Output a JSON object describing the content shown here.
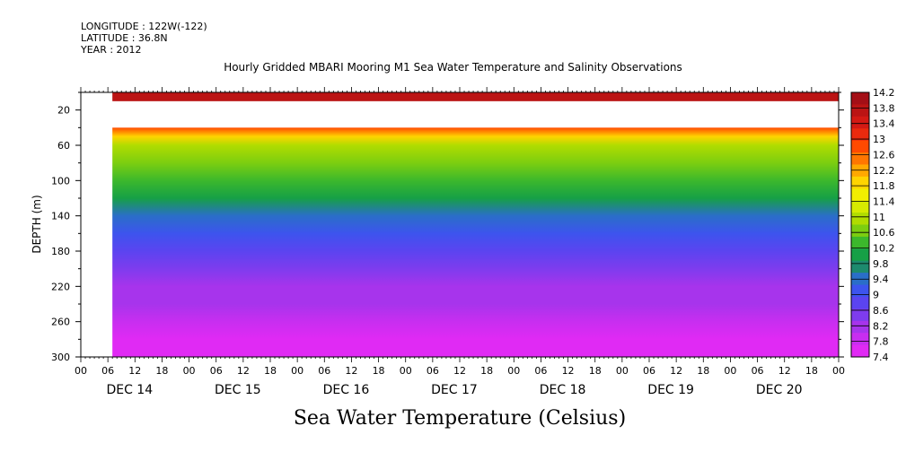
{
  "header": {
    "longitude": "LONGITUDE : 122W(-122)",
    "latitude": "LATITUDE : 36.8N",
    "year": "YEAR : 2012"
  },
  "footer_title": "Sea Water Temperature (Celsius)",
  "chart_data": {
    "type": "heatmap",
    "title": "Hourly Gridded MBARI Mooring M1 Sea Water Temperature and Salinity Observations",
    "xlabel": "",
    "ylabel": "DEPTH (m)",
    "ylim": [
      300,
      0
    ],
    "yticks": [
      20,
      60,
      100,
      140,
      180,
      220,
      260,
      300
    ],
    "x_range_hours": [
      0,
      168
    ],
    "x_hour_ticks": [
      "00",
      "06",
      "12",
      "18",
      "00",
      "06",
      "12",
      "18",
      "00",
      "06",
      "12",
      "18",
      "00",
      "06",
      "12",
      "18",
      "00",
      "06",
      "12",
      "18",
      "00",
      "06",
      "12",
      "18",
      "00",
      "06",
      "12",
      "18",
      "00"
    ],
    "x_day_labels": [
      "DEC 14",
      "DEC 15",
      "DEC 16",
      "DEC 17",
      "DEC 18",
      "DEC 19",
      "DEC 20"
    ],
    "data_start_hour": 7,
    "colorbar": {
      "levels": [
        14.2,
        13.8,
        13.4,
        13,
        12.6,
        12.2,
        11.8,
        11.4,
        11,
        10.6,
        10.2,
        9.8,
        9.4,
        9,
        8.6,
        8.2,
        7.8,
        7.4
      ],
      "colors": [
        "#a40f16",
        "#bb1414",
        "#d31a14",
        "#ea2a0e",
        "#ff4a00",
        "#ff7600",
        "#ffa800",
        "#ffd400",
        "#f2ee00",
        "#d6ea00",
        "#b0dc00",
        "#7cce10",
        "#3cb82c",
        "#16a046",
        "#1d8a6e",
        "#2a6ec8",
        "#3d54ee",
        "#5b44f0",
        "#7e3cee",
        "#a734ec",
        "#c82ef0",
        "#e02af4"
      ],
      "color_ramp_top_to_bottom": [
        "#a40f16",
        "#bb1414",
        "#d31a14",
        "#ea2a0e",
        "#ff4a00",
        "#ff7600",
        "#ffa800",
        "#ffd400",
        "#f2ee00",
        "#d6ea00",
        "#b0dc00",
        "#7cce10",
        "#3cb82c",
        "#16a046",
        "#1d8a6e",
        "#2a6ec8",
        "#3d54ee",
        "#5b44f0",
        "#7e3cee",
        "#a734ec",
        "#c82ef0",
        "#e02af4"
      ]
    },
    "surface_band": {
      "depth_range_m": [
        0,
        10
      ],
      "value_c": 13.8
    },
    "missing_band_depth_m": [
      10,
      40
    ],
    "profile_depth_m": [
      40,
      50,
      60,
      80,
      100,
      120,
      140,
      160,
      180,
      200,
      220,
      240,
      260,
      280,
      300
    ],
    "profile_temp_c": [
      12.8,
      11.9,
      11.1,
      10.6,
      10.2,
      9.9,
      9.5,
      9.1,
      8.8,
      8.5,
      8.3,
      8.1,
      7.9,
      7.7,
      7.5
    ]
  }
}
